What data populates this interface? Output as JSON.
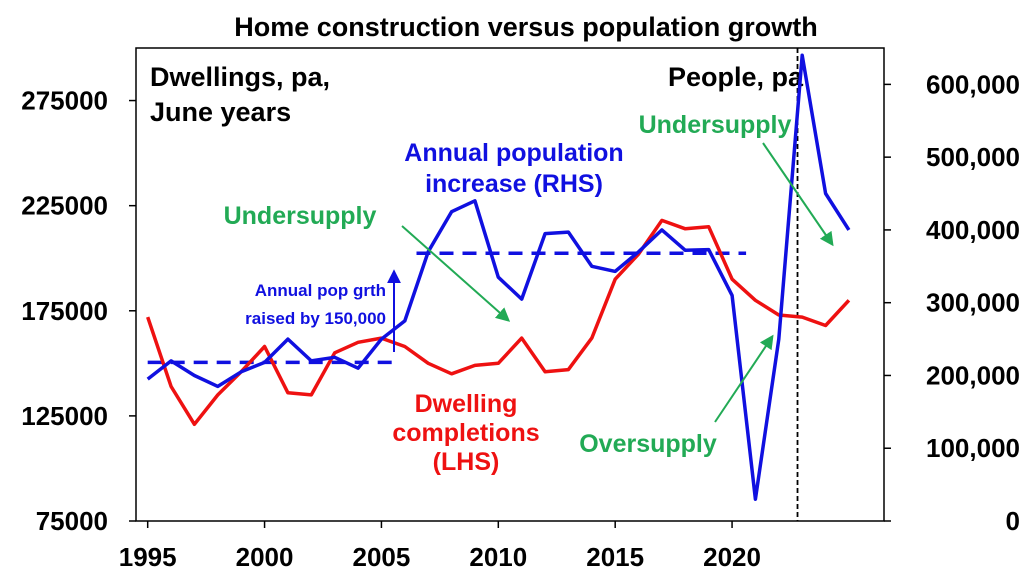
{
  "chart_data": {
    "type": "line",
    "title": "Home construction versus population growth",
    "left_axis_label": [
      "Dwellings, pa,",
      "June years"
    ],
    "right_axis_label": "People, pa",
    "xlim": [
      1994.5,
      2026.5
    ],
    "x_ticks": [
      1995,
      2000,
      2005,
      2010,
      2015,
      2020
    ],
    "ylim_left": [
      75000,
      300000
    ],
    "y_ticks_left": [
      "75000",
      "125000",
      "175000",
      "225000",
      "275000"
    ],
    "y_tick_values_left": [
      75000,
      125000,
      175000,
      225000,
      275000
    ],
    "ylim_right": [
      0,
      650000
    ],
    "y_ticks_right": [
      "0",
      "100,000",
      "200,000",
      "300,000",
      "400,000",
      "500,000",
      "600,000"
    ],
    "y_tick_values_right": [
      0,
      100000,
      200000,
      300000,
      400000,
      500000,
      600000
    ],
    "series": [
      {
        "name": "Annual population increase (RHS)",
        "axis": "right",
        "color": "#1010e0",
        "x": [
          1995,
          1996,
          1997,
          1998,
          1999,
          2000,
          2001,
          2002,
          2003,
          2004,
          2005,
          2006,
          2007,
          2008,
          2009,
          2010,
          2011,
          2012,
          2013,
          2014,
          2015,
          2016,
          2017,
          2018,
          2019,
          2020,
          2021,
          2022,
          2023,
          2024,
          2025
        ],
        "values": [
          195000,
          220000,
          200000,
          185000,
          205000,
          218000,
          250000,
          220000,
          225000,
          210000,
          250000,
          275000,
          370000,
          425000,
          440000,
          335000,
          305000,
          395000,
          397000,
          350000,
          343000,
          370000,
          400000,
          372000,
          373000,
          310000,
          30000,
          250000,
          640000,
          450000,
          400000
        ]
      },
      {
        "name": "Dwelling completions (LHS)",
        "axis": "left",
        "color": "#ee1111",
        "x": [
          1995,
          1996,
          1997,
          1998,
          1999,
          2000,
          2001,
          2002,
          2003,
          2004,
          2005,
          2006,
          2007,
          2008,
          2009,
          2010,
          2011,
          2012,
          2013,
          2014,
          2015,
          2016,
          2017,
          2018,
          2019,
          2020,
          2021,
          2022,
          2023,
          2024,
          2025
        ],
        "values": [
          172000,
          139000,
          121000,
          135000,
          146000,
          158000,
          136000,
          135000,
          155000,
          160000,
          162000,
          158000,
          150000,
          145000,
          149000,
          150000,
          162000,
          146000,
          147000,
          162000,
          190000,
          202000,
          218000,
          214000,
          215000,
          190000,
          180000,
          173000,
          172000,
          168000,
          180000
        ]
      }
    ],
    "reference_lines": [
      {
        "style": "dashed",
        "color": "#1010e0",
        "axis": "right",
        "x_start": 1995,
        "x_end": 2005.6,
        "value": 218000
      },
      {
        "style": "dashed",
        "color": "#1010e0",
        "axis": "right",
        "x_start": 2006.5,
        "x_end": 2020.6,
        "value": 368000
      },
      {
        "style": "dotted-vertical",
        "color": "#000000",
        "x": 2022.8
      }
    ],
    "annotations": {
      "pop_label": [
        "Annual population",
        "increase (RHS)"
      ],
      "dwell_label": [
        "Dwelling",
        "completions",
        "(LHS)"
      ],
      "pop_growth_note": [
        "Annual pop grth",
        "raised by 150,000"
      ],
      "undersupply_1": "Undersupply",
      "undersupply_2": "Undersupply",
      "oversupply": "Oversupply",
      "annotation_color": "#22aa55"
    }
  }
}
